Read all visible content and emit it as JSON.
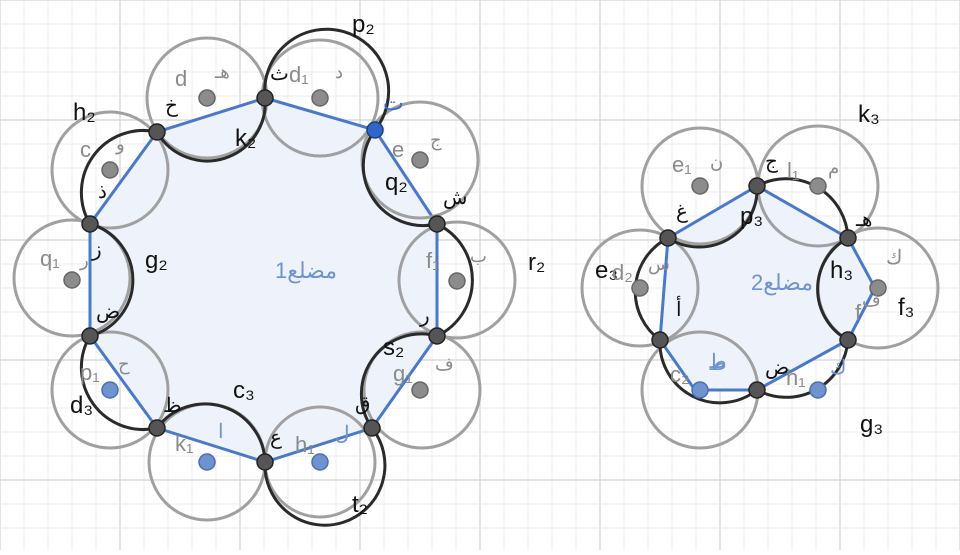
{
  "colors": {
    "grid_minor": "#ececec",
    "grid_major": "#d2d2d2",
    "polygon_fill": "#eef3fb",
    "polygon_stroke": "#4a79c9",
    "circle_dark": "#2a2a2a",
    "circle_grey": "#a0a0a0",
    "vertex_dark": "#555555",
    "point_blue": "#6f93cf",
    "point_grey": "#8c8c8c",
    "selected_point": "#2f66c7"
  },
  "polygons": [
    {
      "name": "مضلع1",
      "vertices": [
        {
          "label": "ث",
          "id": "tha"
        },
        {
          "label": "ت",
          "id": "ta",
          "selected": true
        },
        {
          "label": "ش",
          "id": "shin"
        },
        {
          "label": "ر",
          "id": "ra"
        },
        {
          "label": "ق",
          "id": "qaf"
        },
        {
          "label": "ل",
          "id": "lam"
        },
        {
          "label": "ع",
          "id": "ain"
        },
        {
          "label": "ظ",
          "id": "dha"
        },
        {
          "label": "ض",
          "id": "dad"
        },
        {
          "label": "ز",
          "id": "zay"
        },
        {
          "label": "ذ",
          "id": "dhal"
        },
        {
          "label": "خ",
          "id": "kha"
        }
      ],
      "midpoints": [
        {
          "label": "d₁",
          "arabic": "د"
        },
        {
          "label": "e",
          "arabic": "ج"
        },
        {
          "label": "f₁",
          "arabic": "ب"
        },
        {
          "label": "g₁",
          "arabic": "ف"
        },
        {
          "label": "h₁",
          "arabic": "ل"
        },
        {
          "label": "k₁",
          "arabic": "ا"
        },
        {
          "label": "p₁",
          "arabic": "ح"
        },
        {
          "label": "q₁",
          "arabic": "ر"
        },
        {
          "label": "c",
          "arabic": "و"
        },
        {
          "label": "d",
          "arabic": "هـ"
        }
      ],
      "arcs": [
        "p₂",
        "q₂",
        "r₂",
        "s₂",
        "t₂",
        "c₃",
        "d₃",
        "g₂",
        "h₂",
        "k₂"
      ]
    },
    {
      "name": "مضلع2",
      "vertices": [
        {
          "label": "ج",
          "id": "jim"
        },
        {
          "label": "هـ",
          "id": "ha"
        },
        {
          "label": "ك",
          "id": "kaf"
        },
        {
          "label": "ض",
          "id": "dad2"
        },
        {
          "label": "ط",
          "id": "ta2"
        },
        {
          "label": "أ",
          "id": "alif"
        },
        {
          "label": "غ",
          "id": "ghain"
        }
      ],
      "midpoints": [
        {
          "label": "e₁",
          "arabic": "ن"
        },
        {
          "label": "l₁",
          "arabic": "م"
        },
        {
          "label": "h₁",
          "arabic": "ك"
        },
        {
          "label": "f",
          "arabic": "ف"
        },
        {
          "label": "c₂",
          "arabic": "ط"
        },
        {
          "label": "d₂",
          "arabic": "س"
        }
      ],
      "arcs": [
        "k₃",
        "p₃",
        "h₃",
        "f₃",
        "g₃",
        "e₃"
      ]
    }
  ]
}
